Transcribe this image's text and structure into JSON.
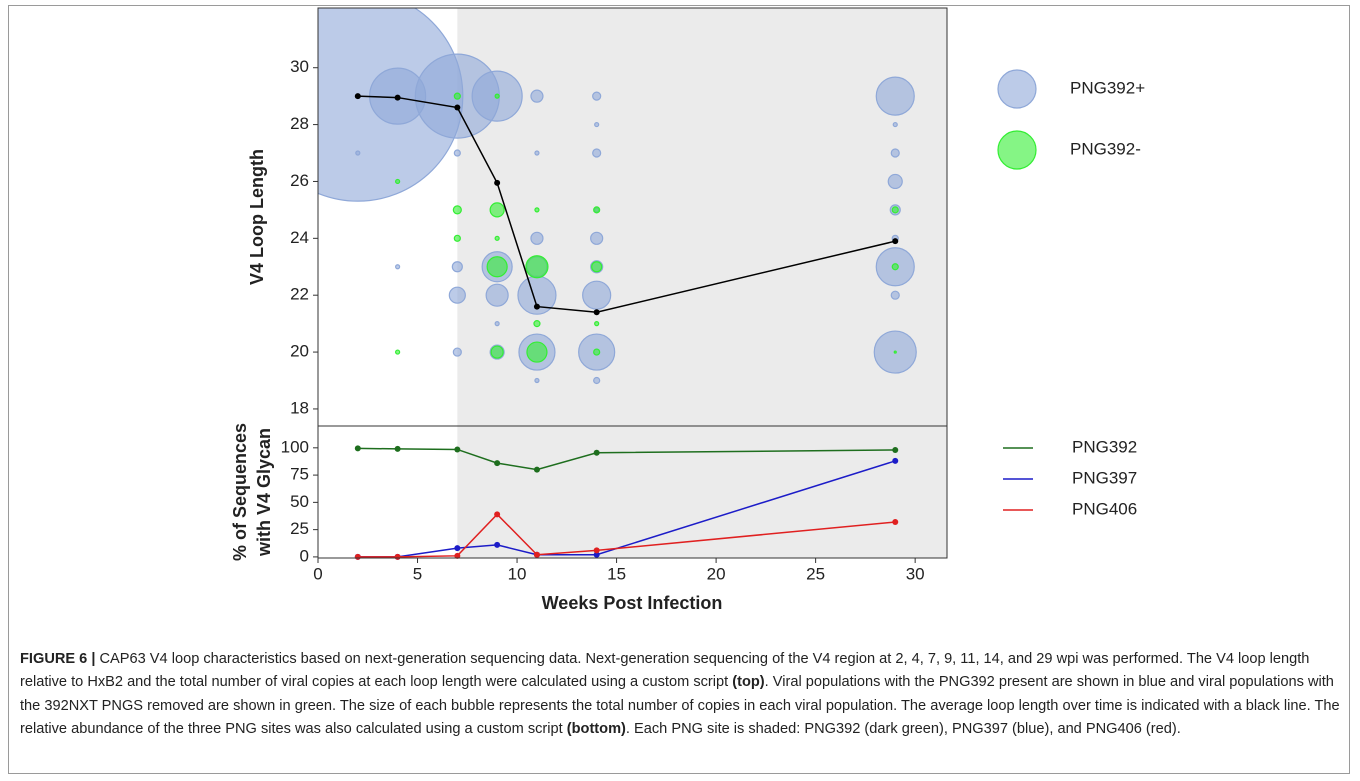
{
  "chart_data": [
    {
      "type": "bubble",
      "y_label": "V4 Loop Length",
      "xlim": [
        0,
        31.6
      ],
      "ylim": [
        17.4,
        32.1
      ],
      "yticks": [
        18,
        20,
        22,
        24,
        26,
        28,
        30
      ],
      "shaded_from": 7,
      "shade_color": "#ebebeb",
      "legend": "right",
      "series": [
        {
          "name": "PNG392+",
          "color": "#8fa8d8",
          "x": [
            2,
            2,
            4,
            4,
            7,
            7,
            7,
            7,
            7,
            9,
            9,
            9,
            9,
            9,
            11,
            11,
            11,
            11,
            11,
            11,
            11,
            14,
            14,
            14,
            14,
            14,
            14,
            14,
            14,
            14,
            29,
            29,
            29,
            29,
            29,
            29,
            29,
            29,
            29
          ],
          "values": [
            29,
            27,
            29,
            23,
            29,
            27,
            23,
            22,
            20,
            29,
            23,
            22,
            21,
            20,
            29,
            27,
            24,
            23,
            22,
            20,
            19,
            29,
            28,
            27,
            25,
            24,
            23,
            22,
            20,
            19,
            29,
            28,
            27,
            26,
            25,
            24,
            23,
            22,
            20
          ],
          "sizes": [
            11025,
            4,
            784,
            4,
            1764,
            9,
            25,
            64,
            16,
            625,
            225,
            121,
            4,
            49,
            36,
            4,
            36,
            100,
            361,
            324,
            4,
            16,
            4,
            16,
            4,
            36,
            36,
            196,
            324,
            9,
            361,
            4,
            16,
            49,
            25,
            9,
            361,
            16,
            441
          ]
        },
        {
          "name": "PNG392-",
          "color": "#33ee33",
          "x": [
            4,
            4,
            7,
            7,
            7,
            9,
            9,
            9,
            9,
            9,
            11,
            11,
            11,
            11,
            14,
            14,
            14,
            14,
            29,
            29,
            29
          ],
          "values": [
            26,
            20,
            29,
            25,
            24,
            29,
            25,
            24,
            23,
            20,
            25,
            23,
            21,
            20,
            25,
            23,
            21,
            20,
            25,
            23,
            20
          ],
          "sizes": [
            4,
            4,
            9,
            16,
            9,
            4,
            49,
            4,
            100,
            36,
            4,
            121,
            9,
            100,
            9,
            25,
            4,
            9,
            9,
            9,
            1
          ]
        }
      ],
      "mean_line": {
        "color": "#000000",
        "x": [
          2,
          4,
          7,
          9,
          11,
          14,
          29
        ],
        "values": [
          29.0,
          28.95,
          28.6,
          25.95,
          21.6,
          21.4,
          23.9
        ]
      }
    },
    {
      "type": "line",
      "y_label": [
        "% of Sequences",
        "with V4 Glycan"
      ],
      "x_label": "Weeks Post Infection",
      "xlim": [
        0,
        31.6
      ],
      "ylim": [
        -1,
        120
      ],
      "xticks": [
        0,
        5,
        10,
        15,
        20,
        25,
        30
      ],
      "yticks": [
        0,
        25,
        50,
        75,
        100
      ],
      "shaded_from": 7,
      "shade_color": "#ebebeb",
      "legend": "right",
      "x": [
        2,
        4,
        7,
        9,
        11,
        14,
        29
      ],
      "series": [
        {
          "name": "PNG392",
          "color": "#1e6e1e",
          "values": [
            99.5,
            99,
            98.5,
            86,
            80,
            95.5,
            98
          ]
        },
        {
          "name": "PNG397",
          "color": "#1c1cc8",
          "values": [
            0,
            0,
            8,
            11,
            2,
            2,
            88
          ]
        },
        {
          "name": "PNG406",
          "color": "#e02020",
          "values": [
            0,
            0,
            1,
            39,
            2,
            6,
            32
          ]
        }
      ]
    }
  ],
  "caption": {
    "label": "FIGURE 6 |",
    "parts": [
      "CAP63 V4 loop characteristics based on next-generation sequencing data. Next-generation sequencing of the V4 region at 2, 4, 7, 9, 11, 14, and 29 wpi was performed. The V4 loop length relative to HxB2 and the total number of viral copies at each loop length were calculated using a custom script",
      "(top)",
      ". Viral populations with the PNG392 present are shown in blue and viral populations with the 392NXT PNGS removed are shown in green. The size of each bubble represents the total number of copies in each viral population. The average loop length over time is indicated with a black line. The relative abundance of the three PNG sites was also calculated using a custom script",
      "(bottom)",
      ". Each PNG site is shaded: PNG392 (dark green), PNG397 (blue), and PNG406 (red)."
    ]
  }
}
